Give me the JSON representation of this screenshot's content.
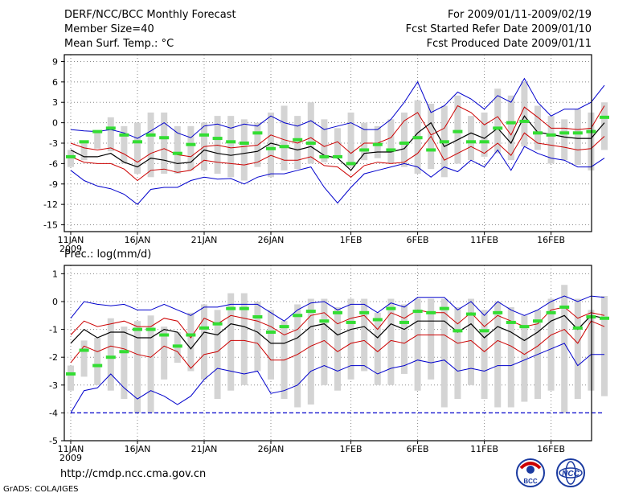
{
  "header": {
    "title": "DERF/NCC/BCC Monthly Forecast",
    "member": "Member Size=40",
    "variable": "Mean Surf. Temp.: °C",
    "for_period": "For 2009/01/11-2009/02/19",
    "started": "Fcst Started Refer Date 2009/01/10",
    "produced": "Fcst Produced Date 2009/01/11"
  },
  "precip_label": "Prec.: log(mm/d)",
  "footer": {
    "url": "http://cmdp.ncc.cma.gov.cn",
    "grads": "GrADS: COLA/IGES",
    "logo_bcc": "BCC",
    "logo_ncc": "NCC"
  },
  "colors": {
    "max_min": "#0000cc",
    "percentile": "#cc0000",
    "mean": "#000000",
    "obs": "#33dd33",
    "bar": "#d4d4d4",
    "floor": "#0000cc"
  },
  "chart_data": [
    {
      "type": "line",
      "title": "Mean Surf. Temp.: °C",
      "xlabel_ticks": [
        "11JAN",
        "16JAN",
        "21JAN",
        "26JAN",
        "1FEB",
        "6FEB",
        "11FEB",
        "16FEB"
      ],
      "xlabel_year": "2009",
      "tick_days": [
        0,
        5,
        10,
        15,
        21,
        26,
        31,
        36
      ],
      "ylim": [
        -16,
        10
      ],
      "yticks": [
        9,
        6,
        3,
        0,
        -3,
        -6,
        -9,
        -12,
        -15
      ],
      "series": [
        {
          "name": "max",
          "values": [
            -1,
            -1.2,
            -1.3,
            -1,
            -1.5,
            -2.3,
            -1.2,
            0,
            -1.5,
            -2.2,
            -0.5,
            -0.2,
            -0.8,
            -0.2,
            -0.5,
            1,
            0,
            -0.5,
            0.3,
            -1,
            -0.5,
            0,
            -1,
            -1,
            0.5,
            3,
            6,
            1.5,
            2.5,
            4.5,
            3.5,
            2,
            4,
            3,
            6.5,
            3,
            1,
            2,
            2,
            3,
            5.5
          ]
        },
        {
          "name": "p_upper",
          "values": [
            -3,
            -3.7,
            -4,
            -3.7,
            -4.6,
            -5.8,
            -4.5,
            -3.8,
            -4.7,
            -5,
            -3.5,
            -3.3,
            -3.7,
            -3.5,
            -3.3,
            -1.8,
            -2.5,
            -3,
            -2.2,
            -3.5,
            -2.8,
            -4.5,
            -3,
            -3,
            -2.2,
            0.3,
            1.5,
            -1.8,
            -0.8,
            2.5,
            1.5,
            -0.3,
            0.9,
            -1.8,
            2.3,
            0.8,
            -0.8,
            -0.8,
            -1,
            -0.8,
            2.5
          ]
        },
        {
          "name": "mean",
          "values": [
            -4,
            -5,
            -5,
            -4.5,
            -5.8,
            -6.5,
            -5.2,
            -5.5,
            -6,
            -5.8,
            -4,
            -4.5,
            -4.8,
            -4.5,
            -4.2,
            -3,
            -3.5,
            -4,
            -3.5,
            -4.8,
            -5.2,
            -7,
            -4.5,
            -4.3,
            -4.3,
            -3.8,
            -1.5,
            0,
            -3.5,
            -2.5,
            -1.5,
            -2.3,
            -0.8,
            -3,
            1,
            -1.4,
            -1.7,
            -2.1,
            -2.3,
            -2.3,
            0
          ]
        },
        {
          "name": "p_lower",
          "values": [
            -5,
            -5.8,
            -6,
            -6,
            -6.8,
            -8.5,
            -7,
            -6.8,
            -7.3,
            -7,
            -5.5,
            -5.8,
            -6,
            -6.2,
            -5.8,
            -4.8,
            -5.5,
            -5.5,
            -5,
            -6.3,
            -6.5,
            -8,
            -6.3,
            -5.8,
            -6,
            -5.8,
            -4.5,
            -2,
            -5.5,
            -4.5,
            -3.5,
            -4.5,
            -3,
            -4.8,
            -1.5,
            -3,
            -3.3,
            -3.6,
            -4,
            -3.8,
            -2
          ]
        },
        {
          "name": "min",
          "values": [
            -7,
            -8.5,
            -9.3,
            -9.7,
            -10.5,
            -12,
            -9.8,
            -9.5,
            -9.5,
            -8.5,
            -8,
            -8.3,
            -8.2,
            -9,
            -8,
            -7.5,
            -7.5,
            -7,
            -6.5,
            -9.5,
            -11.8,
            -9.5,
            -7.5,
            -7,
            -6.5,
            -6,
            -6.5,
            -8,
            -6.5,
            -7.2,
            -5.5,
            -6.5,
            -4,
            -7,
            -3.5,
            -4.5,
            -5.2,
            -5.5,
            -6.5,
            -6.5,
            -5.2
          ]
        },
        {
          "name": "obs",
          "values": [
            -5,
            -2.8,
            -1.3,
            -0.8,
            -1.8,
            -2.8,
            -1.8,
            -2.2,
            -4.5,
            -3.2,
            -1.8,
            -2.3,
            -2.8,
            -3,
            -1.5,
            -3.8,
            -3.5,
            -2.5,
            -3,
            -5,
            -5,
            -6,
            -4,
            -3.2,
            -4,
            -3,
            -2.2,
            -4,
            -2.8,
            -1.3,
            -2.8,
            -2.8,
            -0.8,
            0,
            0.2,
            -1.5,
            -1.8,
            -1.5,
            -1.5,
            -1.3,
            0.8
          ]
        },
        {
          "name": "bar_top",
          "values": [
            -4,
            -3,
            -1.3,
            0.8,
            -0.5,
            0,
            1.5,
            1.5,
            -0.5,
            -0.5,
            0,
            1,
            1,
            0.5,
            0,
            1.5,
            2.5,
            1,
            3,
            0.5,
            -0.8,
            1.5,
            0,
            -0.5,
            0.5,
            1.5,
            3.3,
            2.8,
            2.5,
            4,
            1,
            1.5,
            5,
            4,
            6,
            2.5,
            1,
            0.5,
            2,
            1.5,
            3
          ]
        },
        {
          "name": "bar_bottom",
          "values": [
            -6.5,
            -5.5,
            -3.8,
            -4.2,
            -6,
            -7.5,
            -8,
            -7.5,
            -7.5,
            -7,
            -7,
            -7.5,
            -8,
            -8.5,
            -6.5,
            -8,
            -7,
            -6.8,
            -6,
            -5.8,
            -5.2,
            -6.5,
            -5.5,
            -5.2,
            -6,
            -6.5,
            -7.5,
            -6.8,
            -8,
            -6,
            -5.5,
            -5,
            -4.5,
            -5.5,
            -3.5,
            -4,
            -6,
            -5.5,
            -6.2,
            -7,
            -4
          ]
        }
      ]
    },
    {
      "type": "line",
      "title": "Prec.: log(mm/d)",
      "xlabel_ticks": [
        "11JAN",
        "16JAN",
        "21JAN",
        "26JAN",
        "1FEB",
        "6FEB",
        "11FEB",
        "16FEB"
      ],
      "xlabel_year": "2009",
      "tick_days": [
        0,
        5,
        10,
        15,
        21,
        26,
        31,
        36
      ],
      "ylim": [
        -5,
        1.3
      ],
      "yticks": [
        1,
        0,
        -1,
        -2,
        -3,
        -4,
        -5
      ],
      "floor": -4,
      "series": [
        {
          "name": "max",
          "values": [
            -0.6,
            0,
            -0.1,
            -0.15,
            -0.1,
            -0.3,
            -0.3,
            -0.1,
            -0.3,
            -0.5,
            -0.2,
            -0.2,
            -0.1,
            -0.1,
            -0.1,
            -0.4,
            -0.7,
            -0.3,
            -0.05,
            0,
            -0.3,
            -0.1,
            -0.1,
            -0.4,
            -0.05,
            -0.2,
            0.15,
            0.15,
            0.15,
            -0.3,
            0,
            -0.5,
            0,
            -0.3,
            -0.5,
            -0.3,
            0,
            0.2,
            0,
            0.2,
            0.15
          ]
        },
        {
          "name": "p_upper",
          "values": [
            -1.2,
            -0.7,
            -0.9,
            -0.8,
            -0.7,
            -0.9,
            -0.9,
            -0.6,
            -0.7,
            -1.3,
            -0.6,
            -0.8,
            -0.5,
            -0.6,
            -0.7,
            -0.9,
            -1.2,
            -1,
            -0.5,
            -0.4,
            -0.8,
            -0.6,
            -0.5,
            -1,
            -0.4,
            -0.6,
            -0.3,
            -0.4,
            -0.4,
            -0.8,
            -0.4,
            -0.9,
            -0.5,
            -0.7,
            -0.9,
            -0.8,
            -0.3,
            -0.2,
            -0.6,
            -0.4,
            -0.5
          ]
        },
        {
          "name": "mean",
          "values": [
            -1.5,
            -1,
            -1.3,
            -1.1,
            -1.1,
            -1.3,
            -1.3,
            -1,
            -1.1,
            -1.7,
            -1.1,
            -1.2,
            -0.8,
            -0.9,
            -1.1,
            -1.5,
            -1.5,
            -1.3,
            -0.9,
            -0.8,
            -1.2,
            -1,
            -0.9,
            -1.3,
            -0.8,
            -1,
            -0.7,
            -0.7,
            -0.7,
            -1.1,
            -0.8,
            -1.3,
            -0.9,
            -1.1,
            -1.4,
            -1.1,
            -0.7,
            -0.5,
            -1,
            -0.5,
            -0.6
          ]
        },
        {
          "name": "p_lower",
          "values": [
            -2.2,
            -1.6,
            -1.8,
            -1.6,
            -1.7,
            -1.9,
            -2,
            -1.6,
            -1.8,
            -2.4,
            -1.9,
            -1.8,
            -1.4,
            -1.4,
            -1.5,
            -2.1,
            -2.1,
            -1.9,
            -1.6,
            -1.4,
            -1.8,
            -1.5,
            -1.4,
            -1.8,
            -1.4,
            -1.5,
            -1.2,
            -1.2,
            -1.2,
            -1.5,
            -1.4,
            -1.8,
            -1.4,
            -1.6,
            -1.9,
            -1.6,
            -1.2,
            -1,
            -1.5,
            -0.7,
            -0.9
          ]
        },
        {
          "name": "min",
          "values": [
            -4,
            -3.2,
            -3.1,
            -2.6,
            -3.1,
            -3.5,
            -3.2,
            -3.4,
            -3.7,
            -3.4,
            -2.8,
            -2.4,
            -2.5,
            -2.6,
            -2.5,
            -3.3,
            -3.2,
            -3,
            -2.5,
            -2.3,
            -2.5,
            -2.3,
            -2.3,
            -2.6,
            -2.4,
            -2.3,
            -2.1,
            -2.2,
            -2.1,
            -2.5,
            -2.4,
            -2.5,
            -2.3,
            -2.3,
            -2.1,
            -1.9,
            -1.7,
            -1.5,
            -2.3,
            -1.9,
            -1.9
          ]
        },
        {
          "name": "obs",
          "values": [
            -2.6,
            -1.75,
            -2.3,
            -2,
            -1.8,
            -1,
            -1,
            -1.2,
            -1.6,
            -1.2,
            -0.95,
            -0.8,
            -0.25,
            -0.25,
            -0.55,
            -1.1,
            -0.9,
            -0.5,
            -0.35,
            -0.7,
            -0.4,
            -0.75,
            -0.4,
            -0.65,
            -0.25,
            -0.75,
            -0.35,
            -0.4,
            -0.25,
            -1.05,
            -0.45,
            -1.05,
            -0.4,
            -0.75,
            -0.9,
            -0.7,
            -0.4,
            -0.2,
            -0.95,
            -0.55,
            -0.6
          ]
        },
        {
          "name": "bar_top",
          "values": [
            -2.3,
            -1.4,
            -1.3,
            -0.6,
            -0.9,
            -0.7,
            -0.5,
            -0.9,
            -1.1,
            -0.4,
            -0.1,
            -0.3,
            0.3,
            0.3,
            0,
            -0.3,
            -0.7,
            -0.1,
            0.1,
            0.1,
            -0.2,
            0.1,
            0.1,
            -0.4,
            0.1,
            -0.1,
            0.1,
            0.1,
            0.1,
            -0.2,
            0.1,
            -0.3,
            0,
            -0.2,
            -0.5,
            -0.3,
            0.1,
            0.6,
            0.1,
            -0.3,
            0.2
          ]
        },
        {
          "name": "bar_bottom",
          "values": [
            -3.2,
            -2.7,
            -3,
            -3.2,
            -3.5,
            -4,
            -4,
            -2.8,
            -2.2,
            -2.5,
            -2.8,
            -3.5,
            -3.2,
            -3,
            -2.5,
            -2.8,
            -3.5,
            -3.8,
            -3.7,
            -3,
            -3.2,
            -2.8,
            -2.5,
            -3,
            -3,
            -2.6,
            -3.2,
            -2.8,
            -3.8,
            -3.5,
            -3,
            -3.5,
            -3.8,
            -3.8,
            -3.6,
            -3.5,
            -3.2,
            -4,
            -3.5,
            -3.2,
            -3.4
          ]
        }
      ]
    }
  ]
}
